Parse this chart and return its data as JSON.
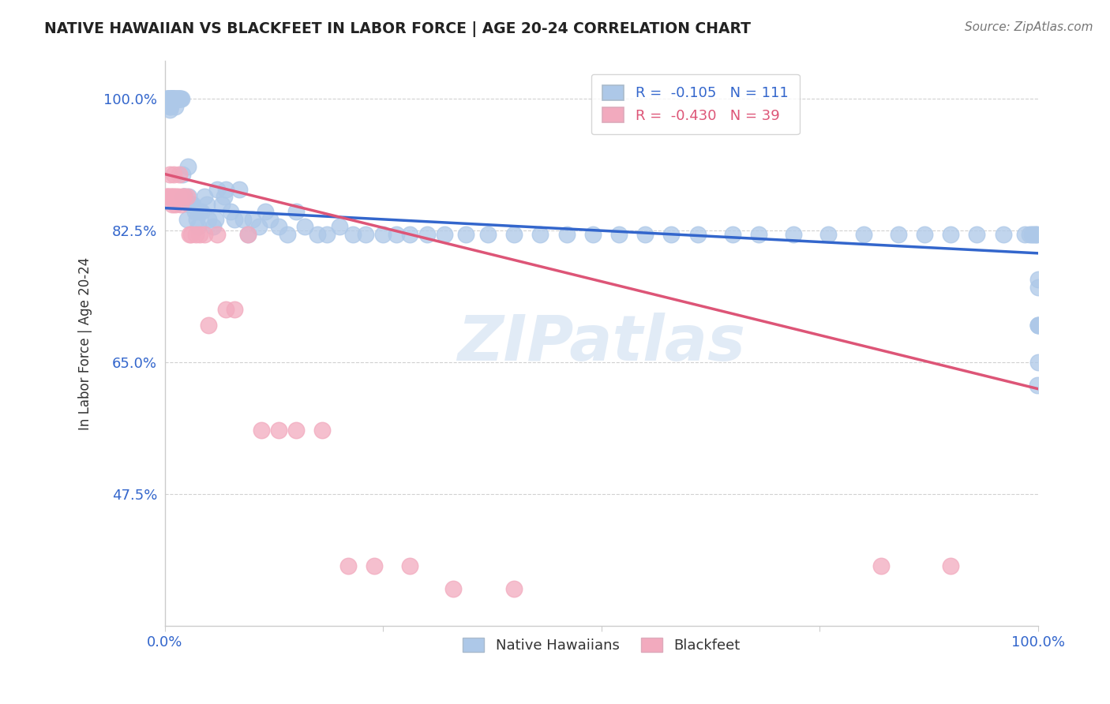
{
  "title": "NATIVE HAWAIIAN VS BLACKFEET IN LABOR FORCE | AGE 20-24 CORRELATION CHART",
  "source_text": "Source: ZipAtlas.com",
  "ylabel": "In Labor Force | Age 20-24",
  "xlim": [
    0.0,
    1.0
  ],
  "ylim": [
    0.3,
    1.05
  ],
  "yticks": [
    0.475,
    0.65,
    0.825,
    1.0
  ],
  "ytick_labels": [
    "47.5%",
    "65.0%",
    "82.5%",
    "100.0%"
  ],
  "xtick_labels": [
    "0.0%",
    "",
    "",
    "",
    "100.0%"
  ],
  "watermark": "ZIPatlas",
  "blue_color": "#adc8e8",
  "pink_color": "#f2aabe",
  "blue_line_color": "#3366cc",
  "pink_line_color": "#dd5577",
  "legend_blue_label": "R =  -0.105   N = 111",
  "legend_pink_label": "R =  -0.430   N = 39",
  "blue_intercept": 0.855,
  "blue_slope": -0.06,
  "pink_intercept": 0.9,
  "pink_slope": -0.285,
  "blue_points_x": [
    0.002,
    0.003,
    0.003,
    0.004,
    0.004,
    0.005,
    0.005,
    0.005,
    0.006,
    0.006,
    0.006,
    0.007,
    0.007,
    0.008,
    0.008,
    0.009,
    0.009,
    0.01,
    0.01,
    0.011,
    0.012,
    0.012,
    0.013,
    0.014,
    0.014,
    0.015,
    0.015,
    0.016,
    0.017,
    0.018,
    0.019,
    0.02,
    0.021,
    0.022,
    0.023,
    0.025,
    0.026,
    0.027,
    0.028,
    0.03,
    0.032,
    0.034,
    0.036,
    0.038,
    0.04,
    0.042,
    0.045,
    0.048,
    0.05,
    0.055,
    0.058,
    0.06,
    0.065,
    0.068,
    0.07,
    0.075,
    0.08,
    0.085,
    0.09,
    0.095,
    0.1,
    0.108,
    0.115,
    0.12,
    0.13,
    0.14,
    0.15,
    0.16,
    0.175,
    0.185,
    0.2,
    0.215,
    0.23,
    0.25,
    0.265,
    0.28,
    0.3,
    0.32,
    0.345,
    0.37,
    0.4,
    0.43,
    0.46,
    0.49,
    0.52,
    0.55,
    0.58,
    0.61,
    0.65,
    0.68,
    0.72,
    0.76,
    0.8,
    0.84,
    0.87,
    0.9,
    0.93,
    0.96,
    0.985,
    0.99,
    0.993,
    0.995,
    0.997,
    0.998,
    0.999,
    1.0,
    1.0,
    1.0,
    1.0,
    1.0,
    1.0
  ],
  "blue_points_y": [
    1.0,
    1.0,
    1.0,
    1.0,
    1.0,
    1.0,
    0.99,
    0.985,
    1.0,
    1.0,
    0.99,
    1.0,
    1.0,
    1.0,
    1.0,
    1.0,
    1.0,
    1.0,
    1.0,
    1.0,
    0.99,
    1.0,
    1.0,
    1.0,
    1.0,
    1.0,
    1.0,
    1.0,
    1.0,
    1.0,
    1.0,
    0.9,
    0.87,
    0.87,
    0.87,
    0.84,
    0.91,
    0.87,
    0.86,
    0.86,
    0.86,
    0.85,
    0.84,
    0.83,
    0.85,
    0.85,
    0.87,
    0.86,
    0.84,
    0.83,
    0.84,
    0.88,
    0.86,
    0.87,
    0.88,
    0.85,
    0.84,
    0.88,
    0.84,
    0.82,
    0.84,
    0.83,
    0.85,
    0.84,
    0.83,
    0.82,
    0.85,
    0.83,
    0.82,
    0.82,
    0.83,
    0.82,
    0.82,
    0.82,
    0.82,
    0.82,
    0.82,
    0.82,
    0.82,
    0.82,
    0.82,
    0.82,
    0.82,
    0.82,
    0.82,
    0.82,
    0.82,
    0.82,
    0.82,
    0.82,
    0.82,
    0.82,
    0.82,
    0.82,
    0.82,
    0.82,
    0.82,
    0.82,
    0.82,
    0.82,
    0.82,
    0.82,
    0.82,
    0.82,
    0.62,
    0.76,
    0.75,
    0.7,
    0.65,
    0.7,
    0.7
  ],
  "pink_points_x": [
    0.002,
    0.003,
    0.004,
    0.005,
    0.006,
    0.007,
    0.008,
    0.009,
    0.01,
    0.011,
    0.012,
    0.013,
    0.015,
    0.016,
    0.018,
    0.02,
    0.022,
    0.025,
    0.028,
    0.03,
    0.035,
    0.04,
    0.045,
    0.05,
    0.06,
    0.07,
    0.08,
    0.095,
    0.11,
    0.13,
    0.15,
    0.18,
    0.21,
    0.24,
    0.28,
    0.33,
    0.4,
    0.82,
    0.9
  ],
  "pink_points_y": [
    0.87,
    0.87,
    0.87,
    0.9,
    0.87,
    0.87,
    0.86,
    0.87,
    0.9,
    0.87,
    0.86,
    0.87,
    0.87,
    0.9,
    0.86,
    0.87,
    0.87,
    0.87,
    0.82,
    0.82,
    0.82,
    0.82,
    0.82,
    0.7,
    0.82,
    0.72,
    0.72,
    0.82,
    0.56,
    0.56,
    0.56,
    0.56,
    0.38,
    0.38,
    0.38,
    0.35,
    0.35,
    0.38,
    0.38
  ]
}
